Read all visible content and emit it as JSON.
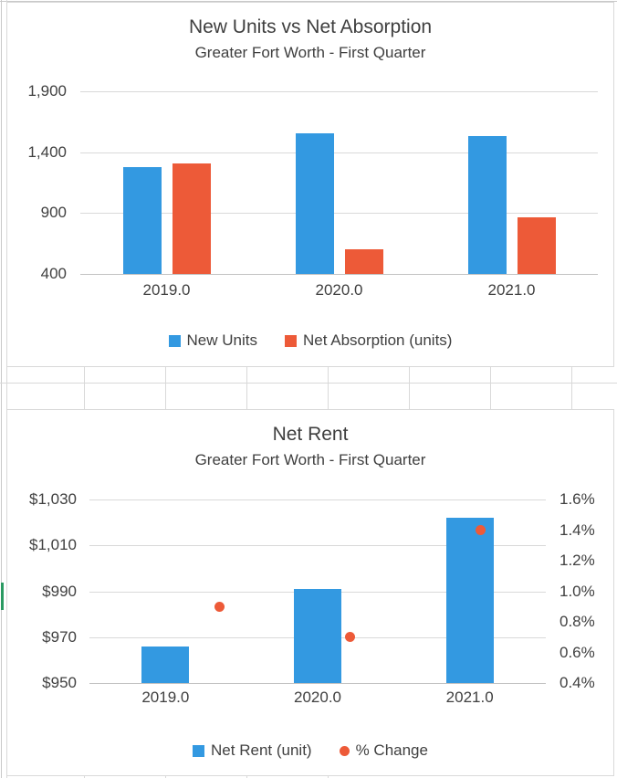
{
  "sheet": {
    "background": "#ffffff",
    "gridline_color": "#d9d9d9",
    "edge_line_color": "#c9c9c9",
    "accent_green": "#2b9a62"
  },
  "text_color": "#404040",
  "chart_data": [
    {
      "type": "bar",
      "title": "New Units vs Net Absorption",
      "subtitle": "Greater Fort Worth - First Quarter",
      "categories": [
        "2019.0",
        "2020.0",
        "2021.0"
      ],
      "series": [
        {
          "name": "New Units",
          "color": "#3399e1",
          "values": [
            1280,
            1555,
            1535
          ]
        },
        {
          "name": "Net Absorption (units)",
          "color": "#ed5a38",
          "values": [
            1310,
            605,
            865
          ]
        }
      ],
      "ylim": [
        400,
        1900
      ],
      "yticks": [
        {
          "value": 1900,
          "label": "1,900"
        },
        {
          "value": 1400,
          "label": "1,400"
        },
        {
          "value": 900,
          "label": "900"
        },
        {
          "value": 400,
          "label": "400"
        }
      ],
      "grid": true,
      "legend_position": "bottom"
    },
    {
      "type": "combo-bar-scatter",
      "title": "Net Rent",
      "subtitle": "Greater Fort Worth - First Quarter",
      "categories": [
        "2019.0",
        "2020.0",
        "2021.0"
      ],
      "series": [
        {
          "name": "Net Rent (unit)",
          "kind": "bar",
          "axis": "left",
          "color": "#3399e1",
          "values": [
            966,
            991,
            1022
          ]
        },
        {
          "name": "% Change",
          "kind": "scatter",
          "axis": "right",
          "color": "#ed5a38",
          "values": [
            0.9,
            0.7,
            1.4
          ]
        }
      ],
      "left_axis": {
        "min": 950,
        "max": 1030,
        "ticks": [
          {
            "value": 1030,
            "label": "$1,030"
          },
          {
            "value": 1010,
            "label": "$1,010"
          },
          {
            "value": 990,
            "label": "$990"
          },
          {
            "value": 970,
            "label": "$970"
          },
          {
            "value": 950,
            "label": "$950"
          }
        ]
      },
      "right_axis": {
        "min": 0.4,
        "max": 1.6,
        "ticks": [
          {
            "value": 1.6,
            "label": "1.6%"
          },
          {
            "value": 1.4,
            "label": "1.4%"
          },
          {
            "value": 1.2,
            "label": "1.2%"
          },
          {
            "value": 1.0,
            "label": "1.0%"
          },
          {
            "value": 0.8,
            "label": "0.8%"
          },
          {
            "value": 0.6,
            "label": "0.6%"
          },
          {
            "value": 0.4,
            "label": "0.4%"
          }
        ]
      },
      "grid": true,
      "legend_position": "bottom"
    }
  ]
}
